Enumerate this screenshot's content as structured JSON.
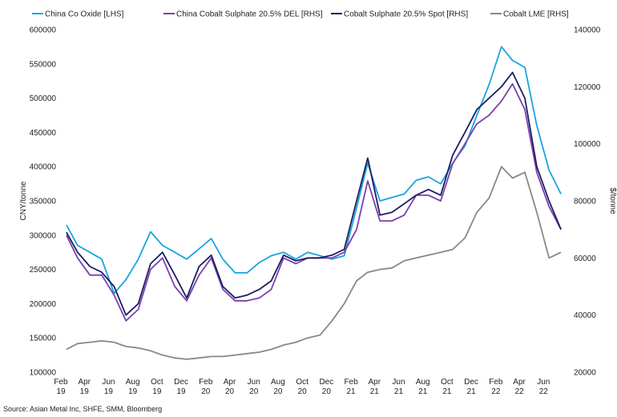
{
  "chart_data": {
    "type": "line",
    "legend_position": "top",
    "grid": false,
    "y_left_label": "CNY/tonne",
    "y_right_label": "$/tonne",
    "y_left_range": [
      100000,
      600000
    ],
    "y_right_range": [
      20000,
      140000
    ],
    "y_left_ticks": [
      "100000",
      "150000",
      "200000",
      "250000",
      "300000",
      "350000",
      "400000",
      "450000",
      "500000",
      "550000",
      "600000"
    ],
    "y_right_ticks": [
      "20000",
      "40000",
      "60000",
      "80000",
      "100000",
      "120000",
      "140000"
    ],
    "x_ticks": [
      {
        "month": "Feb",
        "year": "19"
      },
      {
        "month": "Apr",
        "year": "19"
      },
      {
        "month": "Jun",
        "year": "19"
      },
      {
        "month": "Aug",
        "year": "19"
      },
      {
        "month": "Oct",
        "year": "19"
      },
      {
        "month": "Dec",
        "year": "19"
      },
      {
        "month": "Feb",
        "year": "20"
      },
      {
        "month": "Apr",
        "year": "20"
      },
      {
        "month": "Jun",
        "year": "20"
      },
      {
        "month": "Aug",
        "year": "20"
      },
      {
        "month": "Oct",
        "year": "20"
      },
      {
        "month": "Dec",
        "year": "20"
      },
      {
        "month": "Feb",
        "year": "21"
      },
      {
        "month": "Apr",
        "year": "21"
      },
      {
        "month": "Jun",
        "year": "21"
      },
      {
        "month": "Aug",
        "year": "21"
      },
      {
        "month": "Oct",
        "year": "21"
      },
      {
        "month": "Dec",
        "year": "21"
      },
      {
        "month": "Feb",
        "year": "22"
      },
      {
        "month": "Apr",
        "year": "22"
      },
      {
        "month": "Jun",
        "year": "22"
      }
    ],
    "series": [
      {
        "name": "China Co Oxide [LHS]",
        "axis": "left",
        "color": "#1aa3e0",
        "x": [
          "2019-02",
          "2019-03",
          "2019-04",
          "2019-05",
          "2019-06",
          "2019-07",
          "2019-08",
          "2019-09",
          "2019-10",
          "2019-11",
          "2019-12",
          "2020-01",
          "2020-02",
          "2020-03",
          "2020-04",
          "2020-05",
          "2020-06",
          "2020-07",
          "2020-08",
          "2020-09",
          "2020-10",
          "2020-11",
          "2020-12",
          "2021-01",
          "2021-02",
          "2021-03",
          "2021-04",
          "2021-05",
          "2021-06",
          "2021-07",
          "2021-08",
          "2021-09",
          "2021-10",
          "2021-11",
          "2021-12",
          "2022-01",
          "2022-02",
          "2022-03",
          "2022-04",
          "2022-05",
          "2022-06",
          "2022-07"
        ],
        "values": [
          315000,
          285000,
          275000,
          265000,
          215000,
          235000,
          265000,
          305000,
          285000,
          275000,
          265000,
          280000,
          295000,
          265000,
          245000,
          245000,
          260000,
          270000,
          275000,
          265000,
          275000,
          270000,
          265000,
          270000,
          340000,
          405000,
          350000,
          355000,
          360000,
          380000,
          385000,
          375000,
          405000,
          430000,
          475000,
          520000,
          575000,
          555000,
          545000,
          460000,
          395000,
          360000
        ]
      },
      {
        "name": "China Cobalt Sulphate 20.5% DEL [RHS]",
        "axis": "right",
        "color": "#7b3fb0",
        "x": [
          "2019-02",
          "2019-03",
          "2019-04",
          "2019-05",
          "2019-06",
          "2019-07",
          "2019-08",
          "2019-09",
          "2019-10",
          "2019-11",
          "2019-12",
          "2020-01",
          "2020-02",
          "2020-03",
          "2020-04",
          "2020-05",
          "2020-06",
          "2020-07",
          "2020-08",
          "2020-09",
          "2020-10",
          "2020-11",
          "2020-12",
          "2021-01",
          "2021-02",
          "2021-03",
          "2021-04",
          "2021-05",
          "2021-06",
          "2021-07",
          "2021-08",
          "2021-09",
          "2021-10",
          "2021-11",
          "2021-12",
          "2022-01",
          "2022-02",
          "2022-03",
          "2022-04",
          "2022-05",
          "2022-06",
          "2022-07"
        ],
        "values": [
          68000,
          60000,
          54000,
          54000,
          47000,
          38000,
          42000,
          56000,
          60000,
          50000,
          45000,
          54000,
          60000,
          49000,
          45000,
          45000,
          46000,
          49000,
          60000,
          58000,
          60000,
          60000,
          60000,
          62000,
          70000,
          87000,
          73000,
          73000,
          75000,
          82000,
          82000,
          80000,
          93000,
          100000,
          107000,
          110000,
          115000,
          121000,
          112000,
          90000,
          78000,
          70000
        ]
      },
      {
        "name": "Cobalt Sulphate 20.5% Spot [RHS]",
        "axis": "right",
        "color": "#1b1f5e",
        "x": [
          "2019-02",
          "2019-03",
          "2019-04",
          "2019-05",
          "2019-06",
          "2019-07",
          "2019-08",
          "2019-09",
          "2019-10",
          "2019-11",
          "2019-12",
          "2020-01",
          "2020-02",
          "2020-03",
          "2020-04",
          "2020-05",
          "2020-06",
          "2020-07",
          "2020-08",
          "2020-09",
          "2020-10",
          "2020-11",
          "2020-12",
          "2021-01",
          "2021-02",
          "2021-03",
          "2021-04",
          "2021-05",
          "2021-06",
          "2021-07",
          "2021-08",
          "2021-09",
          "2021-10",
          "2021-11",
          "2021-12",
          "2022-01",
          "2022-02",
          "2022-03",
          "2022-04",
          "2022-05",
          "2022-06",
          "2022-07"
        ],
        "values": [
          69000,
          62000,
          57000,
          55000,
          50000,
          40000,
          44000,
          58000,
          62000,
          54000,
          46000,
          57000,
          61000,
          50000,
          46000,
          47000,
          49000,
          52000,
          61000,
          59000,
          60000,
          60000,
          61000,
          63000,
          80000,
          95000,
          75000,
          76000,
          79000,
          82000,
          84000,
          82000,
          96000,
          104000,
          112000,
          116000,
          120000,
          125000,
          116000,
          92000,
          80000,
          70000
        ]
      },
      {
        "name": "Cobalt LME [RHS]",
        "axis": "right",
        "color": "#888888",
        "x": [
          "2019-02",
          "2019-03",
          "2019-04",
          "2019-05",
          "2019-06",
          "2019-07",
          "2019-08",
          "2019-09",
          "2019-10",
          "2019-11",
          "2019-12",
          "2020-01",
          "2020-02",
          "2020-03",
          "2020-04",
          "2020-05",
          "2020-06",
          "2020-07",
          "2020-08",
          "2020-09",
          "2020-10",
          "2020-11",
          "2020-12",
          "2021-01",
          "2021-02",
          "2021-03",
          "2021-04",
          "2021-05",
          "2021-06",
          "2021-07",
          "2021-08",
          "2021-09",
          "2021-10",
          "2021-11",
          "2021-12",
          "2022-01",
          "2022-02",
          "2022-03",
          "2022-04",
          "2022-05",
          "2022-06",
          "2022-07"
        ],
        "values": [
          28000,
          30000,
          30500,
          31000,
          30500,
          29000,
          28500,
          27500,
          26000,
          25000,
          24500,
          25000,
          25500,
          25500,
          26000,
          26500,
          27000,
          28000,
          29500,
          30500,
          32000,
          33000,
          38000,
          44000,
          52000,
          55000,
          56000,
          56500,
          59000,
          60000,
          61000,
          62000,
          63000,
          67000,
          76000,
          81000,
          92000,
          88000,
          90000,
          76000,
          60000,
          62000
        ]
      }
    ]
  },
  "source": "Source: Asian Metal Inc, SHFE, SMM, Bloomberg"
}
